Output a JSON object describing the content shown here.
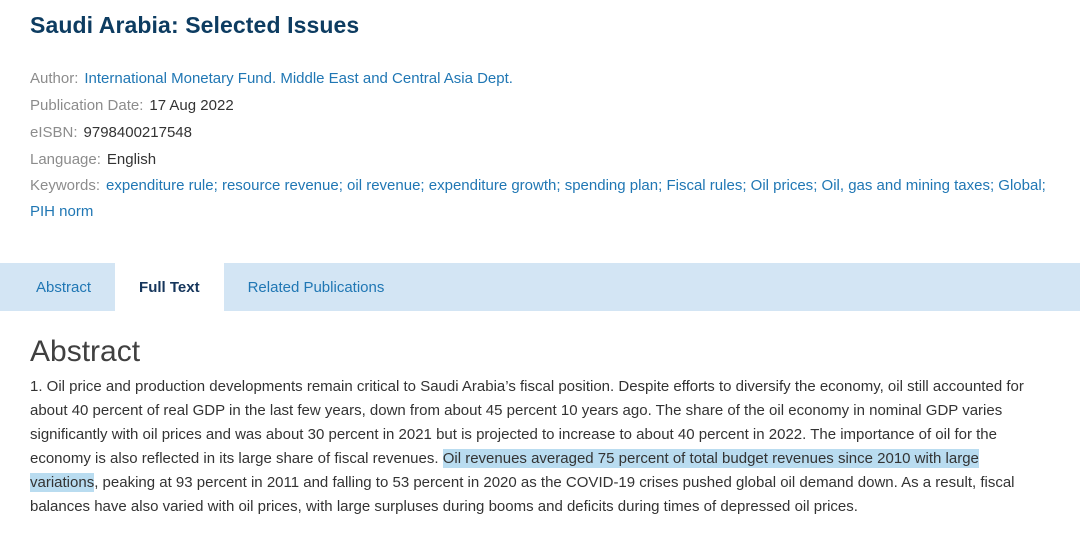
{
  "header": {
    "title": "Saudi Arabia: Selected Issues"
  },
  "metadata": {
    "author_label": "Author:",
    "author": "International Monetary Fund. Middle East and Central Asia Dept.",
    "pub_date_label": "Publication Date:",
    "pub_date": "17 Aug 2022",
    "eisbn_label": "eISBN:",
    "eisbn": "9798400217548",
    "language_label": "Language:",
    "language": "English",
    "keywords_label": "Keywords:",
    "keyword_separator": "; ",
    "keywords": [
      "expenditure rule",
      "resource revenue",
      "oil revenue",
      "expenditure growth",
      "spending plan",
      "Fiscal rules",
      "Oil prices",
      "Oil, gas and mining taxes",
      "Global",
      "PIH norm"
    ]
  },
  "tabs": [
    {
      "label": "Abstract",
      "active": false
    },
    {
      "label": "Full Text",
      "active": true
    },
    {
      "label": "Related Publications",
      "active": false
    }
  ],
  "abstract": {
    "heading": "Abstract",
    "text_before": "1. Oil price and production developments remain critical to Saudi Arabia’s fiscal position. Despite efforts to diversify the economy, oil still accounted for about 40 percent of real GDP in the last few years, down from about 45 percent 10 years ago. The share of the oil economy in nominal GDP varies significantly with oil prices and was about 30 percent in 2021 but is projected to increase to about 40 percent in 2022. The importance of oil for the economy is also reflected in its large share of fiscal revenues. ",
    "highlight": "Oil revenues averaged 75 percent of total budget revenues since 2010 with large variations",
    "text_after": ", peaking at 93 percent in 2011 and falling to 53 percent in 2020 as the COVID-19 crises pushed global oil demand down. As a result, fiscal balances have also varied with oil prices, with large surpluses during booms and deficits during times of depressed oil prices."
  },
  "colors": {
    "title": "#0d3c61",
    "link": "#2077b4",
    "tabbar_background": "#d3e5f4",
    "highlight_background": "#b9dcf0"
  }
}
